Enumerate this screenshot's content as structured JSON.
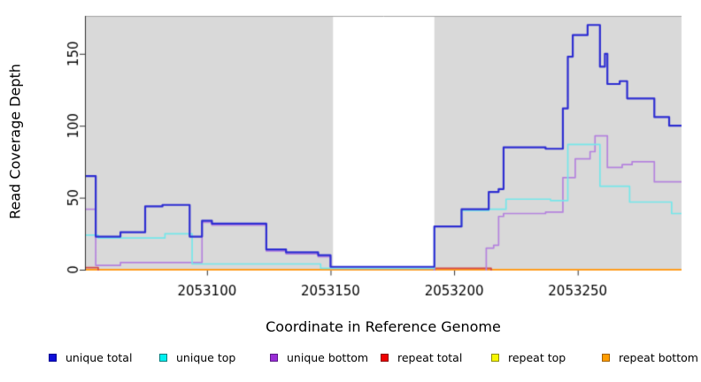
{
  "chart_data": {
    "type": "line",
    "step": true,
    "title": "",
    "xlabel": "Coordinate in Reference Genome",
    "ylabel": "Read Coverage Depth",
    "xlim": [
      2053051,
      2053292
    ],
    "ylim": [
      0,
      176
    ],
    "x_ticks": [
      2053100,
      2053150,
      2053200,
      2053250
    ],
    "y_ticks": [
      0,
      50,
      100,
      150
    ],
    "grid": false,
    "legend_position": "bottom",
    "plot_bg": "#d9d9d9",
    "masked_region": {
      "start": 2053151,
      "end": 2053192,
      "color": "#ffffff"
    },
    "axis_color": "#2f2f2f",
    "series": [
      {
        "name": "unique total",
        "color": "#2e2ed2",
        "legend_fill": "#0f0fd8",
        "legend_stroke": "#000090",
        "points": [
          [
            2053051,
            65
          ],
          [
            2053055,
            23
          ],
          [
            2053065,
            26
          ],
          [
            2053075,
            44
          ],
          [
            2053082,
            45
          ],
          [
            2053093,
            23
          ],
          [
            2053098,
            34
          ],
          [
            2053102,
            32
          ],
          [
            2053124,
            14
          ],
          [
            2053132,
            12
          ],
          [
            2053145,
            10
          ],
          [
            2053150,
            2
          ],
          [
            2053192,
            30
          ],
          [
            2053203,
            42
          ],
          [
            2053214,
            54
          ],
          [
            2053218,
            56
          ],
          [
            2053220,
            85
          ],
          [
            2053237,
            84
          ],
          [
            2053244,
            112
          ],
          [
            2053246,
            148
          ],
          [
            2053248,
            163
          ],
          [
            2053254,
            170
          ],
          [
            2053259,
            141
          ],
          [
            2053261,
            150
          ],
          [
            2053262,
            129
          ],
          [
            2053267,
            131
          ],
          [
            2053270,
            119
          ],
          [
            2053281,
            106
          ],
          [
            2053287,
            100
          ]
        ]
      },
      {
        "name": "unique top",
        "color": "#76e7ea",
        "legend_fill": "#00f0f0",
        "legend_stroke": "#007d7d",
        "points": [
          [
            2053051,
            24
          ],
          [
            2053056,
            22
          ],
          [
            2053083,
            25
          ],
          [
            2053094,
            4
          ],
          [
            2053146,
            1
          ],
          [
            2053192,
            30
          ],
          [
            2053203,
            41
          ],
          [
            2053214,
            42
          ],
          [
            2053221,
            49
          ],
          [
            2053239,
            48
          ],
          [
            2053246,
            87
          ],
          [
            2053259,
            58
          ],
          [
            2053271,
            47
          ],
          [
            2053288,
            39
          ]
        ]
      },
      {
        "name": "unique bottom",
        "color": "#b583de",
        "legend_fill": "#992dd6",
        "legend_stroke": "#5c1a87",
        "points": [
          [
            2053051,
            42
          ],
          [
            2053055,
            3
          ],
          [
            2053065,
            5
          ],
          [
            2053098,
            33
          ],
          [
            2053102,
            31
          ],
          [
            2053124,
            13
          ],
          [
            2053132,
            11
          ],
          [
            2053145,
            9
          ],
          [
            2053150,
            1
          ],
          [
            2053192,
            -3
          ],
          [
            2053213,
            15
          ],
          [
            2053216,
            17
          ],
          [
            2053218,
            37
          ],
          [
            2053220,
            39
          ],
          [
            2053237,
            40
          ],
          [
            2053244,
            64
          ],
          [
            2053249,
            77
          ],
          [
            2053255,
            82
          ],
          [
            2053257,
            93
          ],
          [
            2053262,
            71
          ],
          [
            2053268,
            73
          ],
          [
            2053272,
            75
          ],
          [
            2053281,
            61
          ]
        ]
      },
      {
        "name": "repeat total",
        "color": "#d14b4b",
        "legend_fill": "#ee0000",
        "legend_stroke": "#8b0000",
        "points": [
          [
            2053051,
            1.5
          ],
          [
            2053056,
            -3
          ],
          [
            2053192,
            1
          ],
          [
            2053215,
            -3
          ]
        ]
      },
      {
        "name": "repeat top",
        "color": "#f2f20c",
        "legend_fill": "#f7f700",
        "legend_stroke": "#8f8f00",
        "points": [
          [
            2053051,
            0
          ]
        ]
      },
      {
        "name": "repeat bottom",
        "color": "#ff9d1e",
        "legend_fill": "#ff9d00",
        "legend_stroke": "#a06000",
        "points": [
          [
            2053051,
            0
          ]
        ]
      }
    ]
  }
}
